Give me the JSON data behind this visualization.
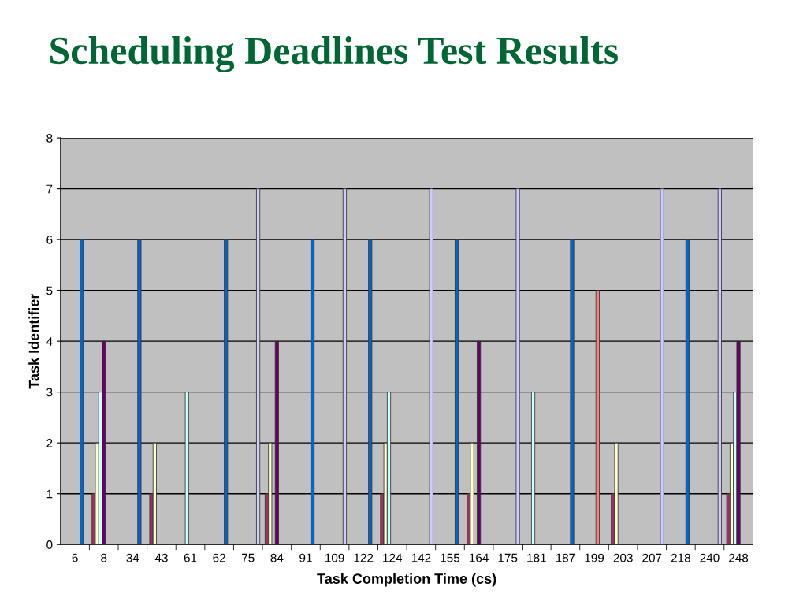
{
  "chart_data": {
    "type": "bar",
    "title": "Scheduling Deadlines Test Results",
    "xlabel": "Task Completion Time (cs)",
    "ylabel": "Task Identifier",
    "categories": [
      "6",
      "8",
      "34",
      "43",
      "61",
      "62",
      "75",
      "84",
      "91",
      "109",
      "122",
      "124",
      "142",
      "155",
      "164",
      "175",
      "181",
      "187",
      "199",
      "203",
      "207",
      "218",
      "240",
      "248"
    ],
    "series": [
      {
        "color": "#993366",
        "values": [
          null,
          1,
          null,
          1,
          null,
          null,
          null,
          1,
          null,
          null,
          null,
          1,
          null,
          null,
          1,
          null,
          null,
          null,
          null,
          1,
          null,
          null,
          null,
          1
        ]
      },
      {
        "color": "#ffffcc",
        "values": [
          null,
          2,
          null,
          2,
          null,
          null,
          null,
          2,
          null,
          null,
          null,
          2,
          null,
          null,
          2,
          null,
          null,
          null,
          null,
          2,
          null,
          null,
          null,
          2
        ]
      },
      {
        "color": "#ccffff",
        "values": [
          null,
          3,
          null,
          null,
          3,
          null,
          null,
          null,
          null,
          null,
          null,
          3,
          null,
          null,
          null,
          null,
          3,
          null,
          null,
          null,
          null,
          null,
          null,
          3
        ]
      },
      {
        "color": "#660066",
        "values": [
          null,
          4,
          null,
          null,
          null,
          null,
          null,
          4,
          null,
          null,
          null,
          null,
          null,
          null,
          4,
          null,
          null,
          null,
          null,
          null,
          null,
          null,
          null,
          4
        ]
      },
      {
        "color": "#ff8080",
        "values": [
          null,
          null,
          null,
          null,
          null,
          null,
          null,
          null,
          null,
          null,
          null,
          null,
          null,
          null,
          null,
          null,
          null,
          null,
          5,
          null,
          null,
          null,
          null,
          null
        ]
      },
      {
        "color": "#0066cc",
        "values": [
          6,
          null,
          6,
          null,
          null,
          6,
          null,
          null,
          6,
          null,
          6,
          null,
          null,
          6,
          null,
          null,
          null,
          6,
          null,
          null,
          null,
          6,
          null,
          null
        ]
      },
      {
        "color": "#ccccff",
        "values": [
          null,
          null,
          null,
          null,
          null,
          null,
          7,
          null,
          null,
          7,
          null,
          null,
          7,
          null,
          null,
          7,
          null,
          null,
          null,
          null,
          7,
          null,
          7,
          null
        ]
      }
    ],
    "ylim": [
      0,
      8
    ],
    "yticks": [
      0,
      1,
      2,
      3,
      4,
      5,
      6,
      7,
      8
    ],
    "grid": "y",
    "legend": false
  }
}
